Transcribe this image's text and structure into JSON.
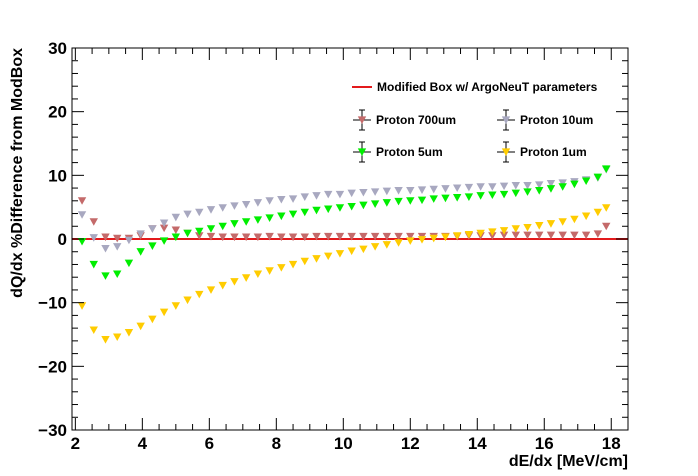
{
  "chart_data": {
    "type": "scatter",
    "xlabel": "dE/dx [MeV/cm]",
    "ylabel": "dQ/dx %Difference from ModBox",
    "xlim": [
      1.9,
      18.5
    ],
    "ylim": [
      -30,
      30
    ],
    "xticks": [
      2,
      4,
      6,
      8,
      10,
      12,
      14,
      16,
      18
    ],
    "yticks": [
      -30,
      -20,
      -10,
      0,
      10,
      20,
      30
    ],
    "x_tick_labels": [
      "2",
      "4",
      "6",
      "8",
      "10",
      "12",
      "14",
      "16",
      "18"
    ],
    "y_tick_labels": [
      "−30",
      "−20",
      "−10",
      "0",
      "10",
      "20",
      "30"
    ],
    "reference_line": {
      "name": "Modified Box w/ ArgoNeuT parameters",
      "y": 0,
      "color": "#e31a1c"
    },
    "legend_placement": "top-right",
    "series": [
      {
        "name": "Proton 700um",
        "color": "#c46a6a",
        "x": [
          2.2,
          2.55,
          2.9,
          3.25,
          3.6,
          3.95,
          4.3,
          4.65,
          5.0,
          5.35,
          5.7,
          6.05,
          6.4,
          6.75,
          7.1,
          7.45,
          7.8,
          8.15,
          8.5,
          8.85,
          9.2,
          9.55,
          9.9,
          10.25,
          10.6,
          10.95,
          11.3,
          11.65,
          12.0,
          12.35,
          12.7,
          13.05,
          13.4,
          13.75,
          14.1,
          14.45,
          14.8,
          15.15,
          15.5,
          15.85,
          16.2,
          16.55,
          16.9,
          17.25,
          17.6,
          17.85
        ],
        "y": [
          6.0,
          2.7,
          0.3,
          0.1,
          0.1,
          0.5,
          1.6,
          1.7,
          1.4,
          0.9,
          0.5,
          0.4,
          0.3,
          0.3,
          0.3,
          0.3,
          0.4,
          0.3,
          0.3,
          0.3,
          0.4,
          0.4,
          0.4,
          0.4,
          0.4,
          0.4,
          0.4,
          0.4,
          0.4,
          0.4,
          0.4,
          0.4,
          0.4,
          0.5,
          0.5,
          0.5,
          0.6,
          0.6,
          0.6,
          0.6,
          0.6,
          0.6,
          0.6,
          0.6,
          0.8,
          2.0
        ]
      },
      {
        "name": "Proton 10um",
        "color": "#a8a8c0",
        "x": [
          2.2,
          2.55,
          2.9,
          3.25,
          3.6,
          3.95,
          4.3,
          4.65,
          5.0,
          5.35,
          5.7,
          6.05,
          6.4,
          6.75,
          7.1,
          7.45,
          7.8,
          8.15,
          8.5,
          8.85,
          9.2,
          9.55,
          9.9,
          10.25,
          10.6,
          10.95,
          11.3,
          11.65,
          12.0,
          12.35,
          12.7,
          13.05,
          13.4,
          13.75,
          14.1,
          14.45,
          14.8,
          15.15,
          15.5,
          15.85,
          16.2,
          16.55,
          16.9,
          17.25,
          17.6,
          17.85
        ],
        "y": [
          3.8,
          0.2,
          -1.5,
          -1.2,
          -0.2,
          0.8,
          1.6,
          2.5,
          3.4,
          3.9,
          4.2,
          4.6,
          4.9,
          5.2,
          5.4,
          5.7,
          6.0,
          6.2,
          6.3,
          6.6,
          6.8,
          7.0,
          7.0,
          7.2,
          7.3,
          7.4,
          7.5,
          7.6,
          7.6,
          7.7,
          7.8,
          7.9,
          8.0,
          8.1,
          8.2,
          8.2,
          8.3,
          8.4,
          8.4,
          8.5,
          8.7,
          8.8,
          9.0,
          9.3,
          9.6,
          10.9
        ]
      },
      {
        "name": "Proton 5um",
        "color": "#00ee00",
        "x": [
          2.2,
          2.55,
          2.9,
          3.25,
          3.6,
          3.95,
          4.3,
          4.65,
          5.0,
          5.35,
          5.7,
          6.05,
          6.4,
          6.75,
          7.1,
          7.45,
          7.8,
          8.15,
          8.5,
          8.85,
          9.2,
          9.55,
          9.9,
          10.25,
          10.6,
          10.95,
          11.3,
          11.65,
          12.0,
          12.35,
          12.7,
          13.05,
          13.4,
          13.75,
          14.1,
          14.45,
          14.8,
          15.15,
          15.5,
          15.85,
          16.2,
          16.55,
          16.9,
          17.25,
          17.6,
          17.85
        ],
        "y": [
          -0.4,
          -4.0,
          -5.8,
          -5.5,
          -3.8,
          -2.0,
          -1.1,
          -0.3,
          0.3,
          0.9,
          1.2,
          1.6,
          2.0,
          2.4,
          2.7,
          3.0,
          3.3,
          3.6,
          3.9,
          4.2,
          4.5,
          4.7,
          4.9,
          5.1,
          5.3,
          5.5,
          5.7,
          5.9,
          6.0,
          6.1,
          6.3,
          6.4,
          6.5,
          6.6,
          6.8,
          6.9,
          7.0,
          7.2,
          7.4,
          7.6,
          7.9,
          8.2,
          8.6,
          9.1,
          9.7,
          11.0
        ]
      },
      {
        "name": "Proton 1um",
        "color": "#ffcc00",
        "x": [
          2.2,
          2.55,
          2.9,
          3.25,
          3.6,
          3.95,
          4.3,
          4.65,
          5.0,
          5.35,
          5.7,
          6.05,
          6.4,
          6.75,
          7.1,
          7.45,
          7.8,
          8.15,
          8.5,
          8.85,
          9.2,
          9.55,
          9.9,
          10.25,
          10.6,
          10.95,
          11.3,
          11.65,
          12.0,
          12.35,
          12.7,
          13.05,
          13.4,
          13.75,
          14.1,
          14.45,
          14.8,
          15.15,
          15.5,
          15.85,
          16.2,
          16.55,
          16.9,
          17.25,
          17.6,
          17.85
        ],
        "y": [
          -10.5,
          -14.3,
          -15.8,
          -15.4,
          -14.7,
          -13.7,
          -12.6,
          -11.5,
          -10.5,
          -9.6,
          -8.7,
          -8.0,
          -7.3,
          -6.7,
          -6.1,
          -5.5,
          -5.0,
          -4.5,
          -4.0,
          -3.5,
          -3.1,
          -2.7,
          -2.3,
          -1.9,
          -1.6,
          -1.2,
          -0.9,
          -0.6,
          -0.3,
          -0.1,
          0.1,
          0.3,
          0.5,
          0.7,
          0.9,
          1.1,
          1.3,
          1.6,
          1.8,
          2.1,
          2.4,
          2.7,
          3.1,
          3.6,
          4.2,
          4.9
        ]
      }
    ]
  }
}
